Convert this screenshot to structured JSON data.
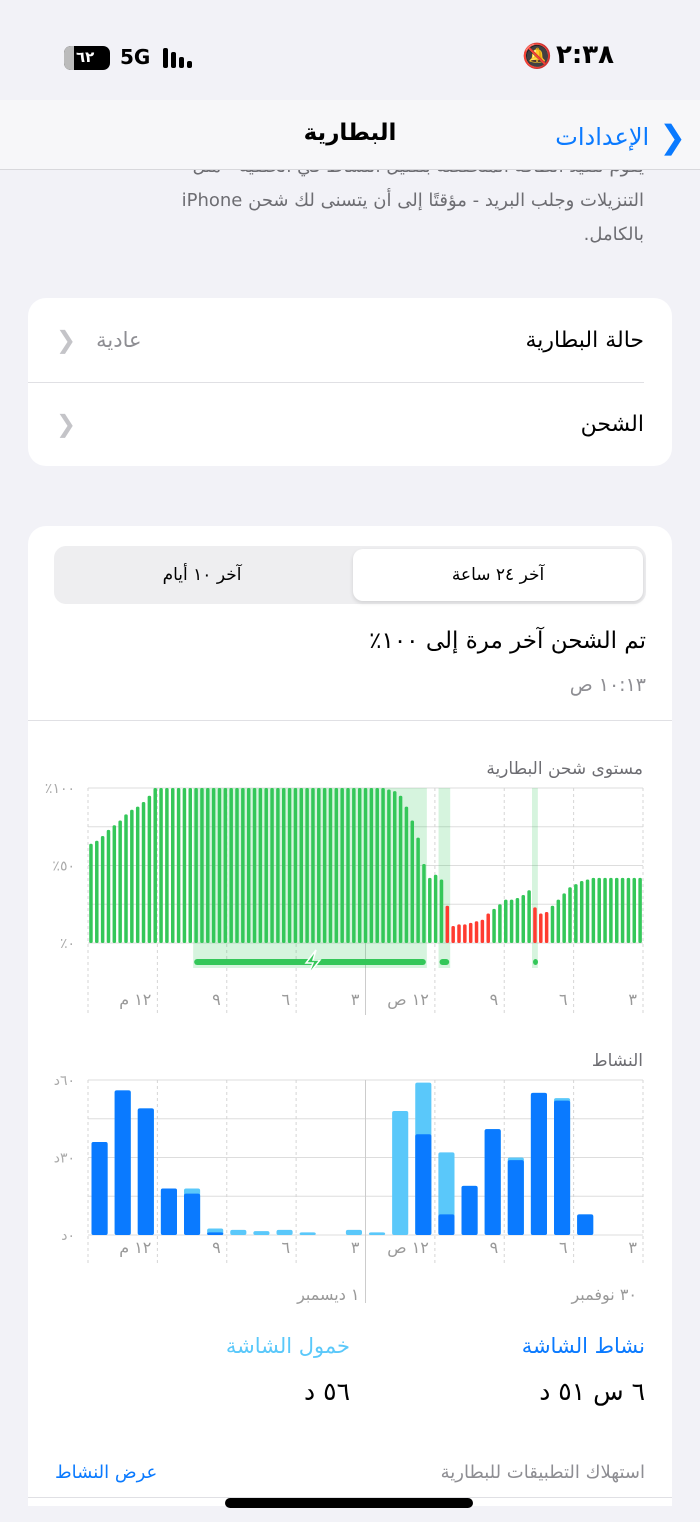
{
  "status_bar": {
    "time": "٢:٣٨",
    "network": "5G",
    "battery": "٦٢",
    "battery_level_percent": 62,
    "icons": [
      "bell-slash-icon",
      "signal-icon",
      "battery-icon"
    ]
  },
  "nav": {
    "back_label": "الإعدادات",
    "title": "البطارية"
  },
  "intro_text": {
    "line0": "يقوم تنفيذ الطاقة المنخفضة بتقليل النشاط في الخلفية - مثل",
    "line1": "التنزيلات وجلب البريد - مؤقتًا إلى أن يتسنى لك شحن iPhone",
    "line2": "بالكامل."
  },
  "settings": [
    {
      "label": "حالة البطارية",
      "value": "عادية"
    },
    {
      "label": "الشحن",
      "value": ""
    }
  ],
  "usage": {
    "tabs": [
      {
        "label": "آخر ٢٤ ساعة",
        "selected": true
      },
      {
        "label": "آخر ١٠ أيام",
        "selected": false
      }
    ],
    "last_charged_title": "تم الشحن آخر مرة إلى ١٠٠٪",
    "last_charged_time": "١٠:١٣ ص",
    "screen_active_label": "نشاط الشاشة",
    "screen_active_value": "٦ س ٥١ د",
    "screen_idle_label": "خمول الشاشة",
    "screen_idle_value": "٥٦ د",
    "app_usage_label": "استهلاك التطبيقات للبطارية",
    "show_activity_label": "عرض النشاط"
  },
  "colors": {
    "accent": "#0a7aff",
    "green": "#34c759",
    "red": "#ff3b30",
    "screen_on": "#0a7aff",
    "screen_idle": "#5ac8fa"
  },
  "chart_data": [
    {
      "type": "bar",
      "title": "مستوى شحن البطارية",
      "x_direction": "right-to-left",
      "ytick_labels": [
        "٪٠",
        "٪٥٠",
        "٪١٠٠"
      ],
      "ylim": [
        0,
        100
      ],
      "xtick_labels": [
        "١٢ م",
        "٩",
        "٦",
        "٣",
        "١٢ ص",
        "٩",
        "٦",
        "٣"
      ],
      "values": [
        64,
        66,
        69,
        73,
        76,
        79,
        83,
        86,
        88,
        91,
        95,
        100,
        100,
        100,
        100,
        100,
        100,
        100,
        100,
        100,
        100,
        100,
        100,
        100,
        100,
        100,
        100,
        100,
        100,
        100,
        100,
        100,
        100,
        100,
        100,
        100,
        100,
        100,
        100,
        100,
        100,
        100,
        100,
        100,
        100,
        100,
        100,
        100,
        100,
        100,
        100,
        99,
        98,
        95,
        88,
        79,
        68,
        51,
        42,
        44,
        41,
        24,
        11,
        12,
        12,
        13,
        14,
        15,
        19,
        22,
        25,
        28,
        28,
        29,
        31,
        34,
        23,
        19,
        20,
        24,
        28,
        32,
        36,
        38,
        40,
        41,
        42,
        42,
        42,
        42,
        42,
        42,
        42,
        42,
        42
      ],
      "low_power_bars": [
        [
          61,
          68
        ],
        [
          76,
          78
        ]
      ],
      "charging_bars": [
        [
          18,
          57
        ],
        [
          60,
          61
        ],
        [
          76,
          76
        ]
      ]
    },
    {
      "type": "bar",
      "title": "النشاط",
      "x_direction": "right-to-left",
      "stacked": true,
      "ytick_labels": [
        "٠د",
        "٣٠د",
        "٦٠د"
      ],
      "ylim": [
        0,
        60
      ],
      "xtick_labels": [
        "١٢ م",
        "٩",
        "٦",
        "٣",
        "١٢ ص",
        "٩",
        "٦",
        "٣"
      ],
      "date_labels": [
        "١ ديسمبر",
        "٣٠ نوفمبر"
      ],
      "series": [
        {
          "name": "نشاط الشاشة",
          "values": [
            36,
            56,
            49,
            18,
            16,
            1,
            0,
            0,
            0,
            0,
            0,
            0,
            0,
            0,
            39,
            8,
            19,
            41,
            29,
            55,
            52,
            8,
            0,
            0
          ]
        },
        {
          "name": "خمول الشاشة",
          "values": [
            0,
            0,
            0,
            0,
            2,
            1.5,
            2,
            1.5,
            2,
            1,
            0,
            2,
            1,
            48,
            20,
            24,
            0,
            0,
            1,
            0,
            1,
            0,
            0,
            0
          ]
        }
      ]
    }
  ]
}
